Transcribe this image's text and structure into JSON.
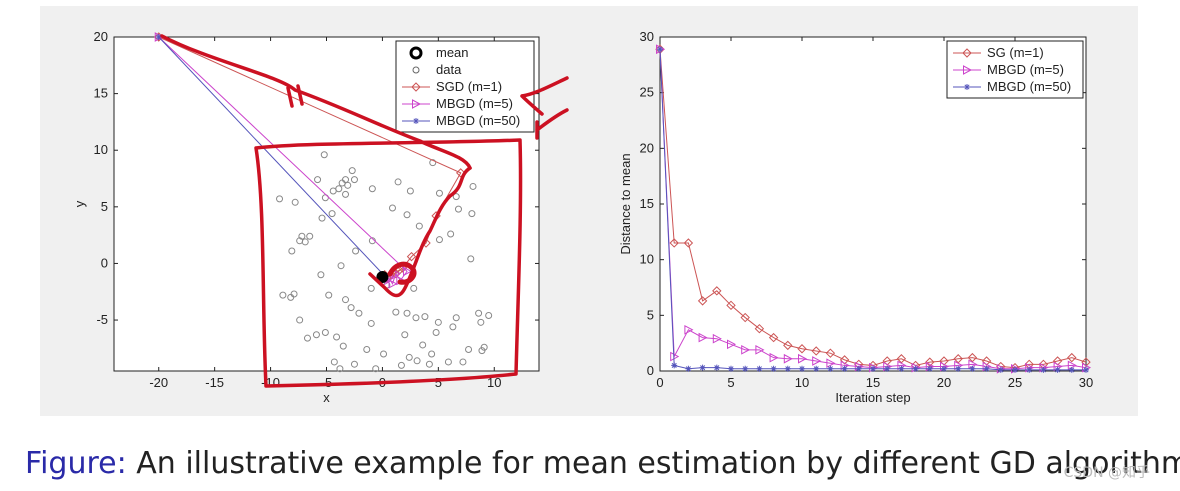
{
  "chart_data": [
    {
      "type": "scatter",
      "title": "",
      "xlabel": "x",
      "ylabel": "y",
      "xlim": [
        -24,
        14
      ],
      "ylim": [
        -9.5,
        20
      ],
      "xticks": [
        -20,
        -15,
        -10,
        -5,
        0,
        5,
        10
      ],
      "yticks": [
        -5,
        0,
        5,
        10,
        15,
        20
      ],
      "grid": false,
      "legend_position": "top-right",
      "mean": {
        "name": "mean",
        "x": 0,
        "y": -1.2
      },
      "data_points": {
        "name": "data",
        "color": "#888888",
        "x": [
          -5.2,
          -5.8,
          -5.1,
          -4.5,
          -3.6,
          -3.3,
          -3.1,
          -2.7,
          -2.5,
          -3.9,
          -4.4,
          -3.3,
          -0.9,
          1.4,
          2.5,
          5.1,
          6.6,
          4.5,
          8.1,
          8.0,
          -9.2,
          -7.8,
          -6.5,
          -6.9,
          -7.2,
          -7.4,
          -8.1,
          -7.9,
          -4.8,
          -3.3,
          -2.8,
          -2.1,
          -1.0,
          0.4,
          1.2,
          2.2,
          3.0,
          3.8,
          4.8,
          6.6,
          5.0,
          6.3,
          8.6,
          9.5,
          8.8,
          9.1,
          7.2,
          4.2,
          2.4,
          0.1,
          -1.4,
          -3.5,
          -4.1,
          -5.1,
          -5.9,
          -6.7,
          -7.4,
          -8.2,
          -8.9,
          -4.3,
          -2.5,
          -0.6,
          1.7,
          3.1,
          4.4,
          5.9,
          7.7,
          8.9,
          7.9,
          6.1,
          3.3,
          2.2,
          0.9,
          -0.9,
          -2.4,
          -3.7,
          -5.5,
          -3.8,
          -1.0,
          2.0,
          3.6,
          -5.4,
          6.8,
          5.1,
          2.8
        ],
        "y": [
          9.6,
          7.4,
          5.8,
          4.4,
          7.1,
          7.4,
          6.9,
          8.2,
          7.4,
          6.6,
          6.4,
          6.1,
          6.6,
          7.2,
          6.4,
          6.2,
          5.9,
          8.9,
          6.8,
          4.4,
          5.7,
          5.4,
          2.4,
          1.9,
          2.4,
          2.0,
          1.1,
          -2.7,
          -2.8,
          -3.2,
          -3.9,
          -4.4,
          -2.2,
          -1.9,
          -4.3,
          -4.4,
          -4.8,
          -4.7,
          -6.1,
          -4.8,
          -5.2,
          -5.6,
          -4.4,
          -4.6,
          -5.2,
          -7.4,
          -8.7,
          -8.9,
          -8.3,
          -8.0,
          -7.6,
          -7.3,
          -6.5,
          -6.1,
          -6.3,
          -6.6,
          -5.0,
          -3.0,
          -2.8,
          -8.7,
          -8.9,
          -9.3,
          -9.0,
          -8.6,
          -8.0,
          -8.7,
          -7.6,
          -7.7,
          0.4,
          2.6,
          3.3,
          4.3,
          4.9,
          2.0,
          1.1,
          -0.2,
          -1.0,
          -9.3,
          -5.3,
          -6.3,
          -7.2,
          4.0,
          4.8,
          2.1,
          -2.2
        ]
      },
      "series": [
        {
          "name": "SGD (m=1)",
          "color": "#cc5555",
          "marker": "diamond",
          "x": [
            -20,
            7.0,
            4.8,
            3.9,
            2.6,
            1.8,
            1.2,
            1.5,
            0.7,
            0.9,
            0.4,
            0.2
          ],
          "y": [
            20,
            8.0,
            4.2,
            1.8,
            0.6,
            -0.4,
            -0.9,
            -0.6,
            -1.1,
            -0.8,
            -1.3,
            -1.0
          ]
        },
        {
          "name": "MBGD (m=5)",
          "color": "#cc44cc",
          "marker": "triangle-right",
          "x": [
            -20,
            2.2,
            1.6,
            1.2,
            0.9,
            0.6,
            0.3,
            0.2
          ],
          "y": [
            20,
            -0.7,
            -1.5,
            -0.9,
            -1.8,
            -1.3,
            -1.6,
            -1.1
          ]
        },
        {
          "name": "MBGD (m=50)",
          "color": "#5555bb",
          "marker": "star",
          "x": [
            -20,
            0.1,
            -0.2,
            0.0,
            0.2,
            -0.1,
            0.0
          ],
          "y": [
            20,
            -1.0,
            -1.5,
            -1.3,
            -1.1,
            -1.4,
            -1.2
          ]
        }
      ]
    },
    {
      "type": "line",
      "title": "",
      "xlabel": "Iteration step",
      "ylabel": "Distance to mean",
      "xlim": [
        0,
        30
      ],
      "ylim": [
        0,
        30
      ],
      "xticks": [
        0,
        5,
        10,
        15,
        20,
        25,
        30
      ],
      "yticks": [
        0,
        5,
        10,
        15,
        20,
        25,
        30
      ],
      "grid": false,
      "legend_position": "top-right",
      "x": [
        0,
        1,
        2,
        3,
        4,
        5,
        6,
        7,
        8,
        9,
        10,
        11,
        12,
        13,
        14,
        15,
        16,
        17,
        18,
        19,
        20,
        21,
        22,
        23,
        24,
        25,
        26,
        27,
        28,
        29,
        30
      ],
      "series": [
        {
          "name": "SG (m=1)",
          "color": "#cc5555",
          "marker": "diamond",
          "values": [
            28.9,
            11.5,
            11.5,
            6.3,
            7.2,
            5.9,
            4.8,
            3.8,
            3.0,
            2.3,
            2.0,
            1.8,
            1.6,
            1.0,
            0.6,
            0.5,
            0.9,
            1.1,
            0.5,
            0.8,
            0.9,
            1.1,
            1.2,
            0.9,
            0.4,
            0.3,
            0.6,
            0.6,
            0.9,
            1.2,
            0.8
          ]
        },
        {
          "name": "MBGD (m=5)",
          "color": "#cc44cc",
          "marker": "triangle-right",
          "values": [
            28.9,
            1.3,
            3.7,
            3.0,
            2.9,
            2.4,
            1.9,
            1.9,
            1.2,
            1.1,
            1.1,
            0.9,
            0.7,
            0.5,
            0.4,
            0.3,
            0.4,
            0.5,
            0.3,
            0.4,
            0.4,
            0.5,
            0.6,
            0.4,
            0.2,
            0.2,
            0.3,
            0.3,
            0.4,
            0.5,
            0.3
          ]
        },
        {
          "name": "MBGD (m=50)",
          "color": "#5555bb",
          "marker": "star",
          "values": [
            28.9,
            0.5,
            0.2,
            0.3,
            0.3,
            0.2,
            0.2,
            0.2,
            0.2,
            0.2,
            0.2,
            0.2,
            0.2,
            0.2,
            0.2,
            0.2,
            0.2,
            0.2,
            0.2,
            0.2,
            0.2,
            0.2,
            0.2,
            0.2,
            0.1,
            0.1,
            0.1,
            0.1,
            0.1,
            0.1,
            0.1
          ]
        }
      ]
    }
  ],
  "caption": {
    "label": "Figure:",
    "text": "An illustrative example for mean estimation by different GD algorithms"
  },
  "annotation_color": "#cc1122",
  "watermark": "CSDN @知乎"
}
